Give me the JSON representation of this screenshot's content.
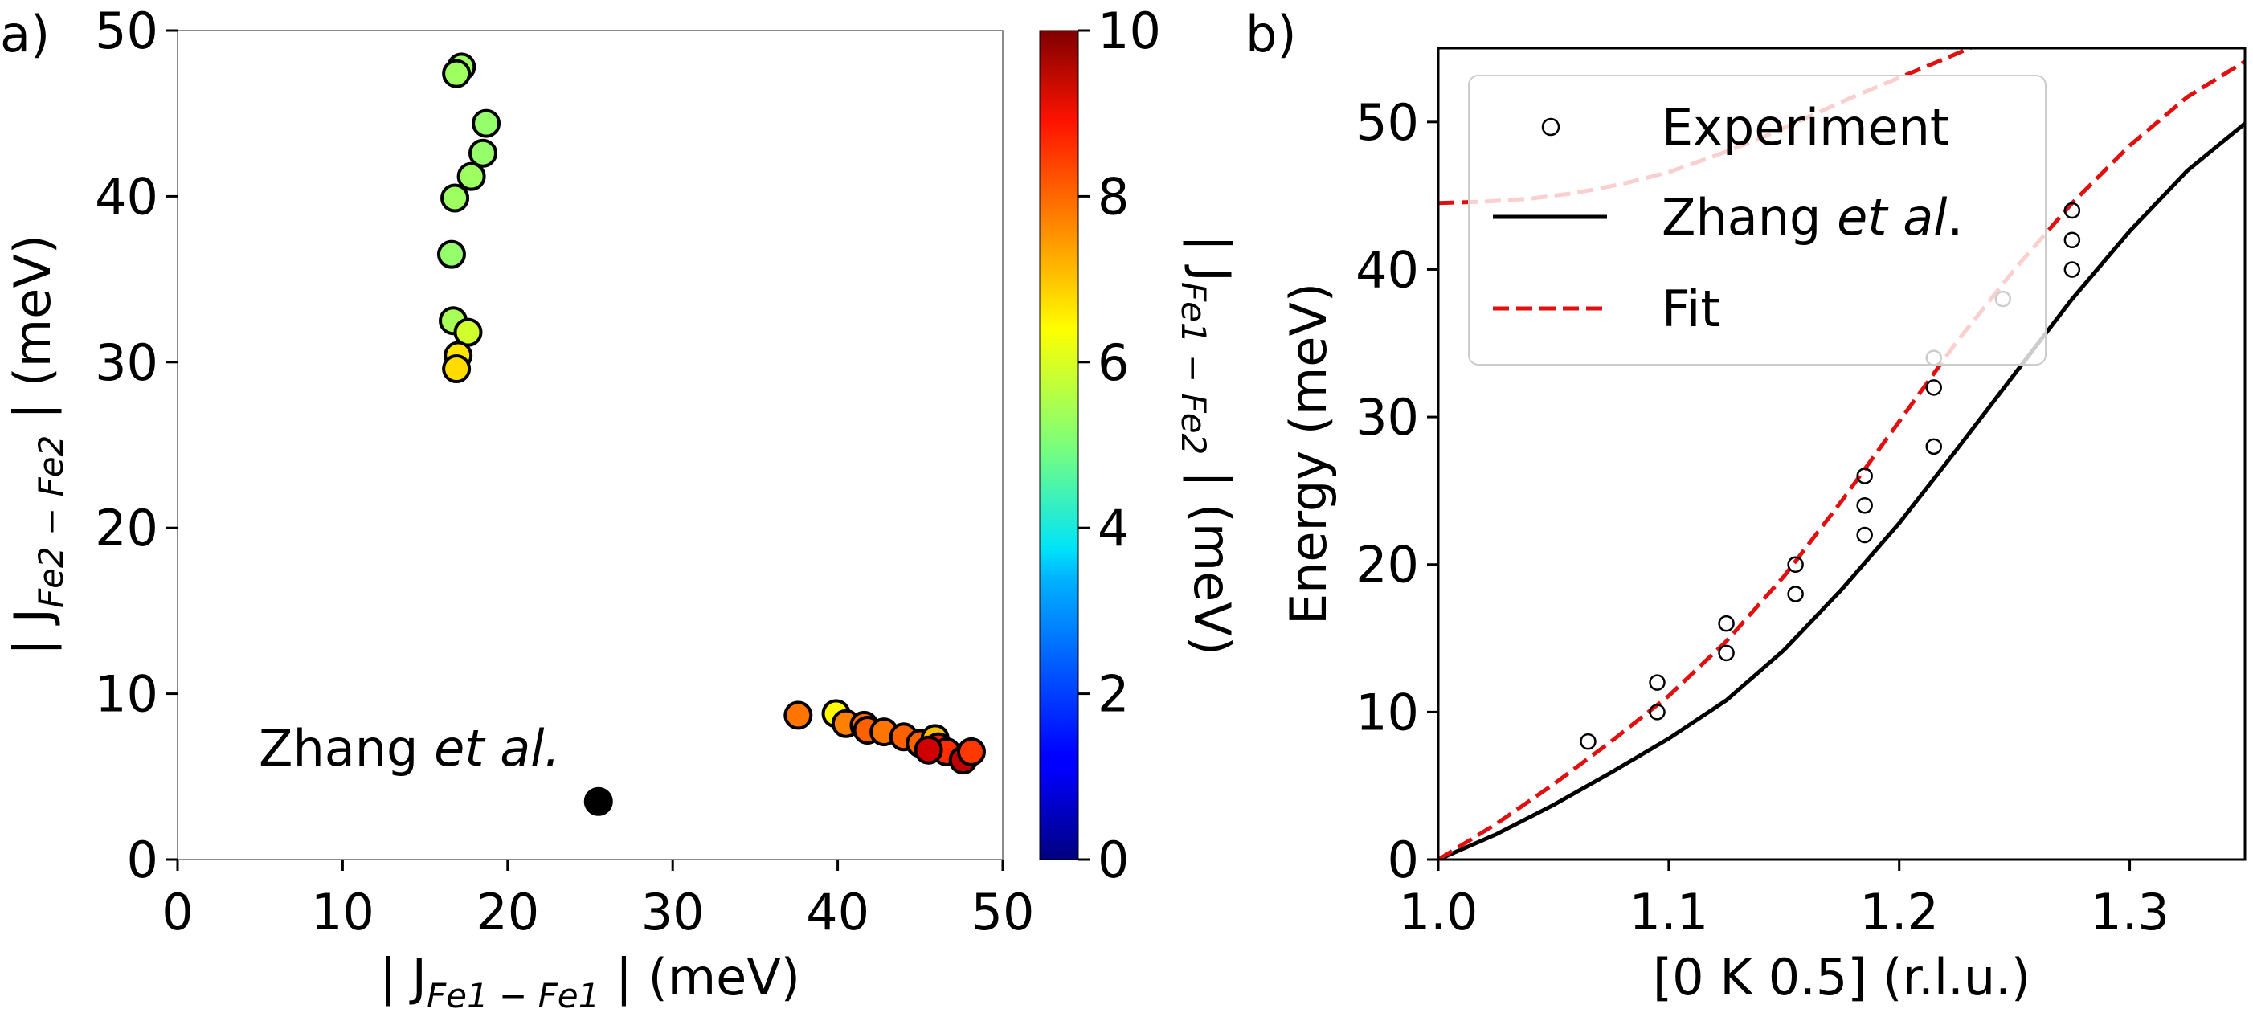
{
  "chart_data": [
    {
      "panel": "a)",
      "type": "scatter",
      "title": "",
      "xlabel": "| J_{Fe1 − Fe1} | (meV)",
      "xlabel_parts": {
        "pre": "| J",
        "sub": "Fe1 − Fe1",
        "post": " | (meV)"
      },
      "ylabel": "| J_{Fe2 − Fe2} | (meV)",
      "ylabel_parts": {
        "pre": "| J",
        "sub": "Fe2 − Fe2",
        "post": " | (meV)"
      },
      "xlim": [
        0,
        50
      ],
      "ylim": [
        0,
        50
      ],
      "xticks": [
        0,
        10,
        20,
        30,
        40,
        50
      ],
      "yticks": [
        0,
        10,
        20,
        30,
        40,
        50
      ],
      "grid": false,
      "colorbar": {
        "label": "| J_{Fe1 − Fe2} | (meV)",
        "label_parts": {
          "pre": "| J",
          "sub": "Fe1 − Fe2",
          "post": " | (meV)"
        },
        "range": [
          0,
          10
        ],
        "ticks": [
          0,
          2,
          4,
          6,
          8,
          10
        ],
        "colormap": "jet"
      },
      "points": [
        {
          "x": 17.2,
          "y": 47.8,
          "c": 5.3
        },
        {
          "x": 16.9,
          "y": 47.4,
          "c": 5.3
        },
        {
          "x": 18.7,
          "y": 44.4,
          "c": 5.2
        },
        {
          "x": 18.5,
          "y": 42.6,
          "c": 5.2
        },
        {
          "x": 17.8,
          "y": 41.2,
          "c": 5.3
        },
        {
          "x": 16.8,
          "y": 39.9,
          "c": 5.3
        },
        {
          "x": 16.6,
          "y": 36.5,
          "c": 5.2
        },
        {
          "x": 16.7,
          "y": 32.5,
          "c": 5.4
        },
        {
          "x": 17.6,
          "y": 31.8,
          "c": 5.8
        },
        {
          "x": 17.0,
          "y": 30.4,
          "c": 6.5
        },
        {
          "x": 16.9,
          "y": 29.6,
          "c": 6.6
        },
        {
          "x": 37.6,
          "y": 8.7,
          "c": 7.6
        },
        {
          "x": 39.9,
          "y": 8.8,
          "c": 6.3
        },
        {
          "x": 40.5,
          "y": 8.2,
          "c": 7.5
        },
        {
          "x": 41.6,
          "y": 8.1,
          "c": 7.7
        },
        {
          "x": 41.8,
          "y": 7.8,
          "c": 7.8
        },
        {
          "x": 42.8,
          "y": 7.7,
          "c": 7.6
        },
        {
          "x": 44.0,
          "y": 7.4,
          "c": 7.8
        },
        {
          "x": 45.0,
          "y": 7.0,
          "c": 7.8
        },
        {
          "x": 45.9,
          "y": 7.3,
          "c": 6.9
        },
        {
          "x": 46.1,
          "y": 6.8,
          "c": 8.5
        },
        {
          "x": 46.6,
          "y": 6.5,
          "c": 8.3
        },
        {
          "x": 45.5,
          "y": 6.6,
          "c": 9.2
        },
        {
          "x": 47.6,
          "y": 6.0,
          "c": 9.4
        },
        {
          "x": 48.1,
          "y": 6.5,
          "c": 8.2
        }
      ],
      "reference_point": {
        "x": 25.5,
        "y": 3.5,
        "color": "#000000"
      },
      "annotation": {
        "pre": "Zhang ",
        "italic": "et al.",
        "x": 5,
        "y": 6.2
      }
    },
    {
      "panel": "b)",
      "type": "line",
      "title": "",
      "xlabel": "[0 K 0.5] (r.l.u.)",
      "ylabel": "Energy (meV)",
      "xlim": [
        1.0,
        1.35
      ],
      "ylim": [
        0,
        55
      ],
      "xticks": [
        1.0,
        1.1,
        1.2,
        1.3
      ],
      "xtick_labels": [
        "1.0",
        "1.1",
        "1.2",
        "1.3"
      ],
      "yticks": [
        0,
        10,
        20,
        30,
        40,
        50
      ],
      "grid": false,
      "legend_position": "upper-left",
      "series": [
        {
          "name": "Experiment",
          "style": "open-circle",
          "color": "#000000",
          "x": [
            1.065,
            1.095,
            1.095,
            1.125,
            1.125,
            1.155,
            1.155,
            1.185,
            1.185,
            1.185,
            1.215,
            1.215,
            1.215,
            1.245,
            1.275,
            1.275,
            1.275
          ],
          "y": [
            8,
            10,
            12,
            14,
            16,
            18,
            20,
            22,
            24,
            26,
            28,
            32,
            34,
            38,
            40,
            42,
            44
          ]
        },
        {
          "name": "Zhang et al.",
          "name_pre": "Zhang ",
          "name_italic": "et al.",
          "style": "solid",
          "color": "#000000",
          "x": [
            1.0,
            1.025,
            1.05,
            1.075,
            1.1,
            1.125,
            1.15,
            1.175,
            1.2,
            1.225,
            1.25,
            1.275,
            1.3,
            1.325,
            1.35
          ],
          "y": [
            0,
            1.7,
            3.7,
            5.9,
            8.2,
            10.8,
            14.2,
            18.3,
            22.8,
            27.8,
            32.9,
            38.0,
            42.6,
            46.7,
            49.9
          ]
        },
        {
          "name": "Fit",
          "style": "dashed",
          "color": "#e01010",
          "x": [
            1.0,
            1.025,
            1.05,
            1.075,
            1.1,
            1.125,
            1.15,
            1.175,
            1.2,
            1.225,
            1.25,
            1.275,
            1.3,
            1.325,
            1.35
          ],
          "y": [
            0,
            2.4,
            5.1,
            8.0,
            11.1,
            14.8,
            19.2,
            24.3,
            29.7,
            35.1,
            40.0,
            44.5,
            48.4,
            51.7,
            54.1
          ]
        },
        {
          "name": "",
          "style": "dashed",
          "color": "#e01010",
          "x": [
            1.0,
            1.02,
            1.04,
            1.06,
            1.08,
            1.1,
            1.12,
            1.14,
            1.16,
            1.18,
            1.2,
            1.22,
            1.235
          ],
          "y": [
            44.5,
            44.6,
            44.8,
            45.2,
            45.8,
            46.6,
            47.7,
            48.9,
            50.3,
            51.7,
            53.0,
            54.3,
            55.3
          ]
        }
      ],
      "legend": [
        {
          "pre": "Experiment",
          "italic": "",
          "post": "",
          "style": "open-circle"
        },
        {
          "pre": "Zhang ",
          "italic": "et al",
          "post": ".",
          "style": "solid"
        },
        {
          "pre": "Fit",
          "italic": "",
          "post": "",
          "style": "dashed"
        }
      ]
    }
  ]
}
